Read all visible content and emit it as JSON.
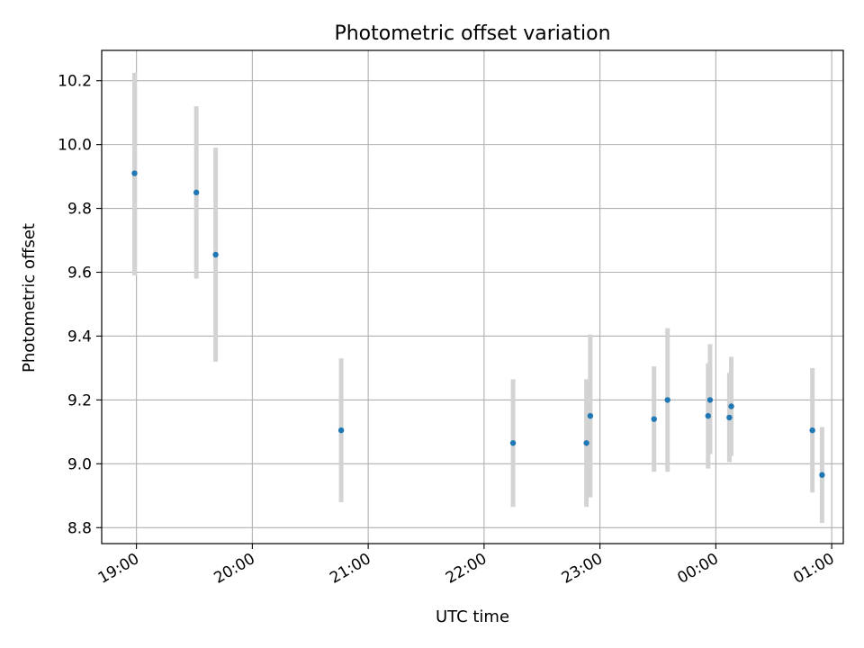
{
  "chart_data": {
    "type": "scatter",
    "title": "Photometric offset variation",
    "xlabel": "UTC time",
    "ylabel": "Photometric offset",
    "ylim": [
      8.75,
      10.295
    ],
    "xlim": [
      "18:42",
      "01:06"
    ],
    "grid": true,
    "y_ticks": [
      8.8,
      9.0,
      9.2,
      9.4,
      9.6,
      9.8,
      10.0,
      10.2
    ],
    "y_tick_labels": [
      "8.8",
      "9.0",
      "9.2",
      "9.4",
      "9.6",
      "9.8",
      "10.0",
      "10.2"
    ],
    "x_ticks": [
      "19:00",
      "20:00",
      "21:00",
      "22:00",
      "23:00",
      "00:00",
      "01:00"
    ],
    "x_tick_labels": [
      "19:00",
      "20:00",
      "21:00",
      "22:00",
      "23:00",
      "00:00",
      "01:00"
    ],
    "colors": {
      "point": "#1f77b4",
      "errorbar": "#d3d3d3",
      "grid": "#b0b0b0"
    },
    "points": [
      {
        "time": "18:59",
        "y": 9.91,
        "ylow": 9.59,
        "yhigh": 10.225
      },
      {
        "time": "19:31",
        "y": 9.85,
        "ylow": 9.58,
        "yhigh": 10.12
      },
      {
        "time": "19:41",
        "y": 9.655,
        "ylow": 9.32,
        "yhigh": 9.99
      },
      {
        "time": "20:46",
        "y": 9.105,
        "ylow": 8.88,
        "yhigh": 9.33
      },
      {
        "time": "22:15",
        "y": 9.065,
        "ylow": 8.865,
        "yhigh": 9.265
      },
      {
        "time": "22:53",
        "y": 9.065,
        "ylow": 8.865,
        "yhigh": 9.265
      },
      {
        "time": "22:55",
        "y": 9.15,
        "ylow": 8.895,
        "yhigh": 9.405
      },
      {
        "time": "23:28",
        "y": 9.14,
        "ylow": 8.975,
        "yhigh": 9.305
      },
      {
        "time": "23:35",
        "y": 9.2,
        "ylow": 8.975,
        "yhigh": 9.425
      },
      {
        "time": "23:56",
        "y": 9.15,
        "ylow": 8.985,
        "yhigh": 9.315
      },
      {
        "time": "23:57",
        "y": 9.2,
        "ylow": 9.03,
        "yhigh": 9.375
      },
      {
        "time": "00:07",
        "y": 9.145,
        "ylow": 9.005,
        "yhigh": 9.285
      },
      {
        "time": "00:08",
        "y": 9.18,
        "ylow": 9.025,
        "yhigh": 9.335
      },
      {
        "time": "00:50",
        "y": 9.105,
        "ylow": 8.91,
        "yhigh": 9.3
      },
      {
        "time": "00:55",
        "y": 8.965,
        "ylow": 8.815,
        "yhigh": 9.115
      }
    ]
  }
}
